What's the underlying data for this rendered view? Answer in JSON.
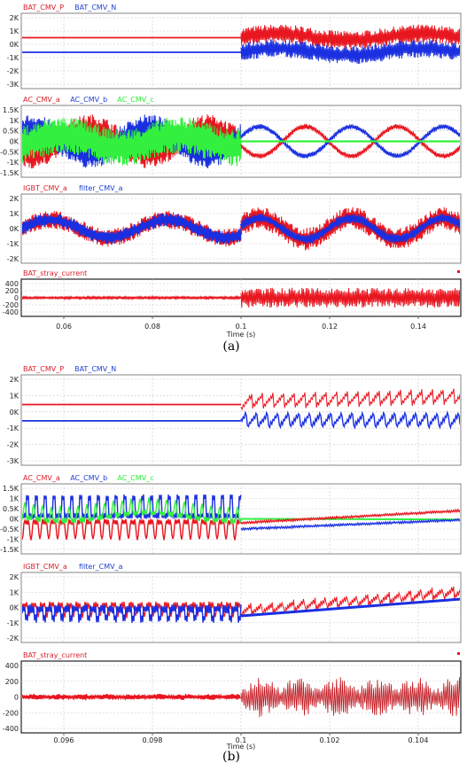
{
  "figures": [
    {
      "caption": "(a)",
      "x_ticks": [
        "0.06",
        "0.08",
        "0.1",
        "0.12",
        "0.14"
      ],
      "x_title": "Time (s)",
      "panels": [
        {
          "legend": [
            {
              "text": "BAT_CMV_P",
              "color": "#d8202a"
            },
            {
              "text": "BAT_CMV_N",
              "color": "#1f3fd0"
            }
          ],
          "y_ticks": [
            "2K",
            "1K",
            "0K",
            "-1K",
            "-2K",
            "-3K"
          ]
        },
        {
          "legend": [
            {
              "text": "AC_CMV_a",
              "color": "#d8202a"
            },
            {
              "text": "AC_CMV_b",
              "color": "#1f3fd0"
            },
            {
              "text": "AC_CMV_c",
              "color": "#2ee83a"
            }
          ],
          "y_ticks": [
            "1.5K",
            "1K",
            "0.5K",
            "0K",
            "-0.5K",
            "-1K",
            "-1.5K"
          ]
        },
        {
          "legend": [
            {
              "text": "IGBT_CMV_a",
              "color": "#d8202a"
            },
            {
              "text": "filter_CMV_a",
              "color": "#1f3fd0"
            }
          ],
          "y_ticks": [
            "2K",
            "1K",
            "0K",
            "-1K",
            "-2K"
          ]
        },
        {
          "legend": [
            {
              "text": "BAT_stray_current",
              "color": "#d8202a"
            }
          ],
          "y_ticks": [
            "400",
            "200",
            "0",
            "-200",
            "-400"
          ]
        }
      ]
    },
    {
      "caption": "(b)",
      "x_ticks": [
        "0.096",
        "0.098",
        "0.1",
        "0.102",
        "0.104"
      ],
      "x_title": "Time (s)",
      "panels": [
        {
          "legend": [
            {
              "text": "BAT_CMV_P",
              "color": "#d8202a"
            },
            {
              "text": "BAT_CMV_N",
              "color": "#1f3fd0"
            }
          ],
          "y_ticks": [
            "2K",
            "1K",
            "0K",
            "-1K",
            "-2K",
            "-3K"
          ]
        },
        {
          "legend": [
            {
              "text": "AC_CMV_a",
              "color": "#d8202a"
            },
            {
              "text": "AC_CMV_b",
              "color": "#1f3fd0"
            },
            {
              "text": "AC_CMV_c",
              "color": "#2ee83a"
            }
          ],
          "y_ticks": [
            "1.5K",
            "1K",
            "0.5K",
            "0K",
            "-0.5K",
            "-1K",
            "-1.5K"
          ]
        },
        {
          "legend": [
            {
              "text": "IGBT_CMV_a",
              "color": "#d8202a"
            },
            {
              "text": "filter_CMV_a",
              "color": "#1f3fd0"
            }
          ],
          "y_ticks": [
            "2K",
            "1K",
            "0K",
            "-1K",
            "-2K"
          ]
        },
        {
          "legend": [
            {
              "text": "BAT_stray_current",
              "color": "#d8202a"
            }
          ],
          "y_ticks": [
            "400",
            "200",
            "0",
            "-200",
            "-400"
          ]
        }
      ]
    }
  ],
  "chart_data": [
    {
      "type": "line",
      "caption": "(a)",
      "xlabel": "Time (s)",
      "xlim": [
        0.05,
        0.15
      ],
      "ylim": [
        -3000,
        2500
      ],
      "series": [
        {
          "name": "BAT_CMV_P",
          "values": [
            500,
            500,
            500,
            700
          ]
        },
        {
          "name": "BAT_CMV_N",
          "values": [
            -600,
            -600,
            -600,
            -500
          ]
        }
      ],
      "x": [
        0.05,
        0.075,
        0.1,
        0.15
      ]
    },
    {
      "type": "line",
      "caption": "(a)",
      "xlabel": "Time (s)",
      "xlim": [
        0.05,
        0.15
      ],
      "ylim": [
        -1500,
        1500
      ],
      "series": [
        {
          "name": "AC_CMV_a",
          "amplitude": 650
        },
        {
          "name": "AC_CMV_b",
          "amplitude": 650
        },
        {
          "name": "AC_CMV_c",
          "amplitude": 0
        }
      ]
    },
    {
      "type": "line",
      "caption": "(a)",
      "xlabel": "Time (s)",
      "xlim": [
        0.05,
        0.15
      ],
      "ylim": [
        -2000,
        2000
      ],
      "series": [
        {
          "name": "IGBT_CMV_a",
          "amplitude": 700
        },
        {
          "name": "filter_CMV_a",
          "amplitude": 650
        }
      ]
    },
    {
      "type": "line",
      "caption": "(a)",
      "xlabel": "Time (s)",
      "xlim": [
        0.05,
        0.15
      ],
      "ylim": [
        -400,
        400
      ],
      "series": [
        {
          "name": "BAT_stray_current",
          "values_before_0.1": [
            -30,
            30
          ],
          "values_after_0.1": [
            -280,
            280
          ]
        }
      ]
    },
    {
      "type": "line",
      "caption": "(b)",
      "xlabel": "Time (s)",
      "xlim": [
        0.095,
        0.105
      ],
      "ylim": [
        -3000,
        2500
      ],
      "series": [
        {
          "name": "BAT_CMV_P",
          "values": [
            500,
            500,
            1000
          ]
        },
        {
          "name": "BAT_CMV_N",
          "values": [
            -500,
            -500,
            -600
          ]
        }
      ],
      "x": [
        0.095,
        0.1,
        0.105
      ]
    },
    {
      "type": "line",
      "caption": "(b)",
      "xlabel": "Time (s)",
      "xlim": [
        0.095,
        0.105
      ],
      "ylim": [
        -1500,
        1500
      ],
      "series": [
        {
          "name": "AC_CMV_a",
          "values": [
            0,
            -200,
            400
          ]
        },
        {
          "name": "AC_CMV_b",
          "values": [
            0,
            -500,
            0
          ]
        },
        {
          "name": "AC_CMV_c",
          "values": [
            0,
            0,
            0
          ]
        }
      ],
      "x": [
        0.095,
        0.1,
        0.105
      ]
    },
    {
      "type": "line",
      "caption": "(b)",
      "xlabel": "Time (s)",
      "xlim": [
        0.095,
        0.105
      ],
      "ylim": [
        -2000,
        2000
      ],
      "series": [
        {
          "name": "IGBT_CMV_a",
          "values": [
            0,
            -500,
            600
          ]
        },
        {
          "name": "filter_CMV_a",
          "values": [
            0,
            -500,
            500
          ]
        }
      ],
      "x": [
        0.095,
        0.1,
        0.105
      ]
    },
    {
      "type": "line",
      "caption": "(b)",
      "xlabel": "Time (s)",
      "xlim": [
        0.095,
        0.105
      ],
      "ylim": [
        -400,
        400
      ],
      "series": [
        {
          "name": "BAT_stray_current",
          "values_before_0.1": [
            -30,
            30
          ],
          "values_after_0.1": [
            -250,
            250
          ]
        }
      ]
    }
  ]
}
